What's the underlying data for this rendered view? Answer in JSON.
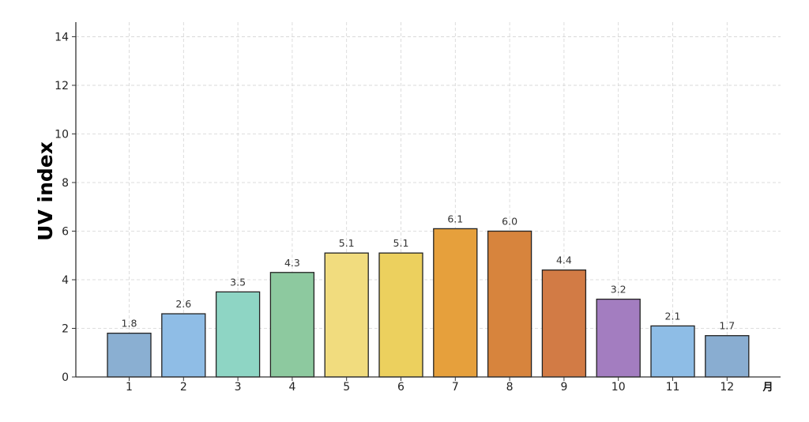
{
  "chart_data": {
    "type": "bar",
    "title": "",
    "xlabel": "",
    "x_unit": "月",
    "ylabel": "UV index",
    "categories": [
      "1",
      "2",
      "3",
      "4",
      "5",
      "6",
      "7",
      "8",
      "9",
      "10",
      "11",
      "12"
    ],
    "values": [
      1.8,
      2.6,
      3.5,
      4.3,
      5.1,
      5.1,
      6.1,
      6.0,
      4.4,
      3.2,
      2.1,
      1.7
    ],
    "value_labels": [
      "1.8",
      "2.6",
      "3.5",
      "4.3",
      "5.1",
      "5.1",
      "6.1",
      "6.0",
      "4.4",
      "3.2",
      "2.1",
      "1.7"
    ],
    "colors": [
      "#8AAFD2",
      "#8FBDE6",
      "#8ED5C4",
      "#8DC99F",
      "#F1DC7E",
      "#ECD05E",
      "#E6A03C",
      "#D7843D",
      "#D27B45",
      "#A37DC0",
      "#8EBDE6",
      "#89ADD1"
    ],
    "ylim": [
      0,
      14.6
    ],
    "yticks": [
      0,
      2,
      4,
      6,
      8,
      10,
      12,
      14
    ],
    "ytick_labels": [
      "0",
      "2",
      "4",
      "6",
      "8",
      "10",
      "12",
      "14"
    ],
    "grid": true,
    "legend": "none"
  }
}
